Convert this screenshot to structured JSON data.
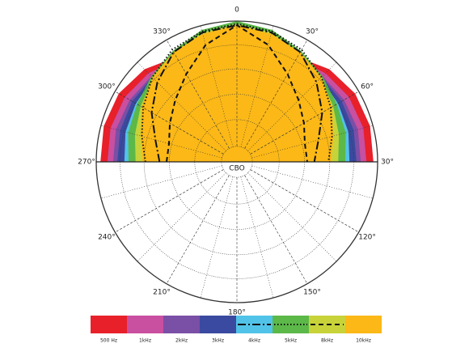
{
  "chart_data": {
    "type": "polar",
    "center_label": "CBO",
    "angle_labels": [
      "0",
      "30°",
      "60°",
      "30°",
      "120°",
      "150°",
      "180°",
      "210°",
      "240°",
      "270°",
      "300°",
      "330°"
    ],
    "theta": [
      -90,
      -75,
      -60,
      -45,
      -30,
      -15,
      0,
      15,
      30,
      45,
      60,
      75,
      90
    ],
    "rlim": [
      0,
      1
    ],
    "series": [
      {
        "name": "500 Hz",
        "color": "#e8202a",
        "values": [
          0.97,
          0.98,
          0.97,
          0.93,
          0.86,
          0.8,
          0.8,
          0.8,
          0.86,
          0.93,
          0.97,
          0.98,
          0.97
        ]
      },
      {
        "name": "1kHz",
        "color": "#c94fa0",
        "values": [
          0.92,
          0.93,
          0.92,
          0.89,
          0.84,
          0.8,
          0.8,
          0.8,
          0.84,
          0.89,
          0.92,
          0.93,
          0.92
        ]
      },
      {
        "name": "2kHz",
        "color": "#7a4fa6",
        "values": [
          0.88,
          0.89,
          0.88,
          0.86,
          0.83,
          0.82,
          0.82,
          0.82,
          0.83,
          0.86,
          0.88,
          0.89,
          0.88
        ]
      },
      {
        "name": "3kHz",
        "color": "#3a4aa0",
        "values": [
          0.85,
          0.86,
          0.86,
          0.85,
          0.84,
          0.86,
          0.88,
          0.86,
          0.84,
          0.85,
          0.86,
          0.86,
          0.85
        ]
      },
      {
        "name": "4kHz",
        "color": "#52c3e8",
        "values": [
          0.8,
          0.82,
          0.83,
          0.84,
          0.86,
          0.91,
          0.95,
          0.91,
          0.86,
          0.84,
          0.83,
          0.82,
          0.8
        ],
        "line": "dash-dot",
        "line_values": [
          0.55,
          0.6,
          0.7,
          0.8,
          0.9,
          0.95,
          0.97,
          0.95,
          0.9,
          0.8,
          0.7,
          0.6,
          0.55
        ]
      },
      {
        "name": "5kHz",
        "color": "#5cb848",
        "values": [
          0.77,
          0.8,
          0.82,
          0.86,
          0.91,
          0.97,
          1.0,
          0.97,
          0.91,
          0.86,
          0.82,
          0.8,
          0.77
        ],
        "line": "dotted",
        "line_values": [
          0.65,
          0.7,
          0.77,
          0.85,
          0.92,
          0.96,
          0.98,
          0.96,
          0.92,
          0.85,
          0.77,
          0.7,
          0.65
        ]
      },
      {
        "name": "8kHz",
        "color": "#c8d33a",
        "values": [
          0.72,
          0.75,
          0.79,
          0.84,
          0.89,
          0.95,
          0.98,
          0.95,
          0.89,
          0.84,
          0.79,
          0.75,
          0.72
        ],
        "line": "dashed",
        "line_values": [
          0.5,
          0.5,
          0.55,
          0.62,
          0.72,
          0.86,
          0.97,
          0.86,
          0.72,
          0.62,
          0.55,
          0.5,
          0.5
        ]
      },
      {
        "name": "10kHz",
        "color": "#fbb817",
        "values": [
          0.67,
          0.71,
          0.78,
          0.85,
          0.9,
          0.94,
          0.97,
          0.94,
          0.9,
          0.85,
          0.78,
          0.71,
          0.67
        ]
      }
    ]
  }
}
